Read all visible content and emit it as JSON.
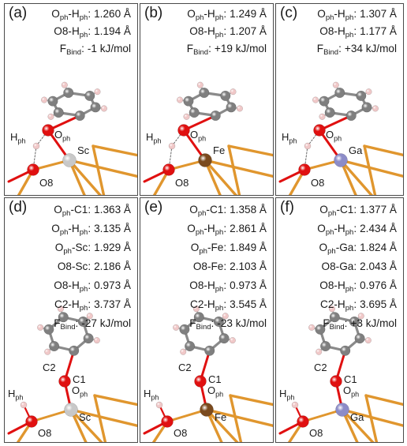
{
  "panels": [
    {
      "label": "(a)",
      "metal": "Sc",
      "metal_color": "#c8c8c8",
      "props": [
        {
          "name": "O",
          "sub": "ph",
          "rest": "-H",
          "sub2": "ph",
          "value": "1.260 Å"
        },
        {
          "name": "O8-H",
          "sub": "ph",
          "rest": "",
          "sub2": "",
          "value": "1.194 Å"
        },
        {
          "name": "F",
          "sub": "Bind",
          "rest": "",
          "sub2": "",
          "value": "-1 kJ/mol"
        }
      ]
    },
    {
      "label": "(b)",
      "metal": "Fe",
      "metal_color": "#7a4a1e",
      "props": [
        {
          "name": "O",
          "sub": "ph",
          "rest": "-H",
          "sub2": "ph",
          "value": "1.249 Å"
        },
        {
          "name": "O8-H",
          "sub": "ph",
          "rest": "",
          "sub2": "",
          "value": "1.207 Å"
        },
        {
          "name": "F",
          "sub": "Bind",
          "rest": "",
          "sub2": "",
          "value": "+19 kJ/mol"
        }
      ]
    },
    {
      "label": "(c)",
      "metal": "Ga",
      "metal_color": "#8c8cc8",
      "props": [
        {
          "name": "O",
          "sub": "ph",
          "rest": "-H",
          "sub2": "ph",
          "value": "1.307 Å"
        },
        {
          "name": "O8-H",
          "sub": "ph",
          "rest": "",
          "sub2": "",
          "value": "1.177 Å"
        },
        {
          "name": "F",
          "sub": "Bind",
          "rest": "",
          "sub2": "",
          "value": "+34 kJ/mol"
        }
      ]
    },
    {
      "label": "(d)",
      "metal": "Sc",
      "metal_color": "#c8c8c8",
      "props": [
        {
          "name": "O",
          "sub": "ph",
          "rest": "-C1:",
          "sub2": "",
          "value": "1.363 Å"
        },
        {
          "name": "O",
          "sub": "ph",
          "rest": "-H",
          "sub2": "ph",
          "value": "3.135 Å"
        },
        {
          "name": "O",
          "sub": "ph",
          "rest": "-Sc:",
          "sub2": "",
          "value": "1.929 Å"
        },
        {
          "name": "O8-Sc:",
          "sub": "",
          "rest": "",
          "sub2": "",
          "value": "2.186 Å"
        },
        {
          "name": "O8-H",
          "sub": "ph",
          "rest": "",
          "sub2": "",
          "value": "0.973 Å"
        },
        {
          "name": "C2-H",
          "sub": "ph",
          "rest": "",
          "sub2": "",
          "value": "3.737 Å"
        },
        {
          "name": "F",
          "sub": "Bind",
          "rest": "",
          "sub2": "",
          "value": "-27 kJ/mol"
        }
      ]
    },
    {
      "label": "(e)",
      "metal": "Fe",
      "metal_color": "#7a4a1e",
      "props": [
        {
          "name": "O",
          "sub": "ph",
          "rest": "-C1:",
          "sub2": "",
          "value": "1.358 Å"
        },
        {
          "name": "O",
          "sub": "ph",
          "rest": "-H",
          "sub2": "ph",
          "value": "2.861 Å"
        },
        {
          "name": "O",
          "sub": "ph",
          "rest": "-Fe:",
          "sub2": "",
          "value": "1.849 Å"
        },
        {
          "name": "O8-Fe:",
          "sub": "",
          "rest": "",
          "sub2": "",
          "value": "2.103 Å"
        },
        {
          "name": "O8-H",
          "sub": "ph",
          "rest": "",
          "sub2": "",
          "value": "0.973 Å"
        },
        {
          "name": "C2-H",
          "sub": "ph",
          "rest": "",
          "sub2": "",
          "value": "3.545 Å"
        },
        {
          "name": "F",
          "sub": "Bind",
          "rest": "",
          "sub2": "",
          "value": "-23 kJ/mol"
        }
      ]
    },
    {
      "label": "(f)",
      "metal": "Ga",
      "metal_color": "#8c8cc8",
      "props": [
        {
          "name": "O",
          "sub": "ph",
          "rest": "-C1:",
          "sub2": "",
          "value": "1.377 Å"
        },
        {
          "name": "O",
          "sub": "ph",
          "rest": "-H",
          "sub2": "ph",
          "value": "2.434 Å"
        },
        {
          "name": "O",
          "sub": "ph",
          "rest": "-Ga:",
          "sub2": "",
          "value": "1.824 Å"
        },
        {
          "name": "O8-Ga:",
          "sub": "",
          "rest": "",
          "sub2": "",
          "value": "2.043 Å"
        },
        {
          "name": "O8-H",
          "sub": "ph",
          "rest": "",
          "sub2": "",
          "value": "0.976 Å"
        },
        {
          "name": "C2-H",
          "sub": "ph",
          "rest": "",
          "sub2": "",
          "value": "3.695 Å"
        },
        {
          "name": "F",
          "sub": "Bind",
          "rest": "",
          "sub2": "",
          "value": "+3 kJ/mol"
        }
      ]
    }
  ],
  "atom_labels": {
    "h_ph_main": "H",
    "h_ph_sub": "ph",
    "o_ph_main": "O",
    "o_ph_sub": "ph",
    "o8": "O8",
    "c1": "C1",
    "c2": "C2"
  },
  "colors": {
    "oxygen": "#e01010",
    "carbon": "#7f7f7f",
    "hydrogen": "#f0c8c8",
    "framework": "#e0962e"
  }
}
